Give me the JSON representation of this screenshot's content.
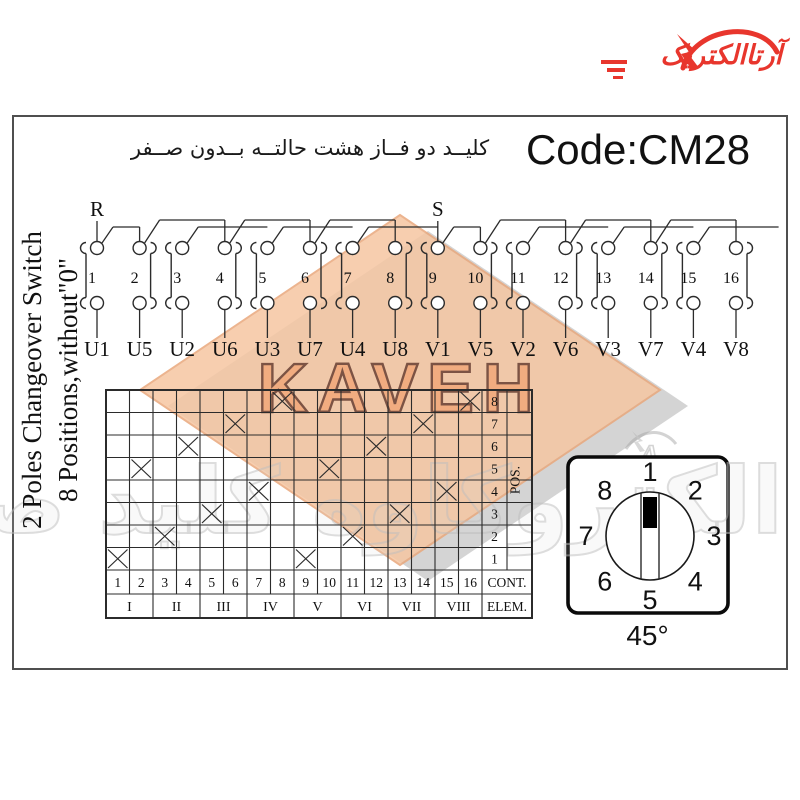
{
  "logo": {
    "brand_fa": "آرتاالکتریک"
  },
  "header": {
    "title_fa": "کلیــد دو فــاز هشت حالتــه بــدون صــفر",
    "code": "Code:CM28"
  },
  "side_label": {
    "line1": "2 Poles Changeover Switch",
    "line2": "8 Positions,without\"0\""
  },
  "circuit": {
    "phase_left": "R",
    "phase_right": "S",
    "contacts": [
      "1",
      "2",
      "3",
      "4",
      "5",
      "6",
      "7",
      "8",
      "9",
      "10",
      "11",
      "12",
      "13",
      "14",
      "15",
      "16"
    ],
    "terminals": [
      "U1",
      "U5",
      "U2",
      "U6",
      "U3",
      "U7",
      "U4",
      "U8",
      "V1",
      "V5",
      "V2",
      "V6",
      "V3",
      "V7",
      "V4",
      "V8"
    ]
  },
  "matrix": {
    "pos_label": "POS.",
    "cont_label": "CONT.",
    "elem_label": "ELEM.",
    "positions_top_to_bottom": [
      "8",
      "7",
      "6",
      "5",
      "4",
      "3",
      "2",
      "1"
    ],
    "contact_columns": [
      "1",
      "2",
      "3",
      "4",
      "5",
      "6",
      "7",
      "8",
      "9",
      "10",
      "11",
      "12",
      "13",
      "14",
      "15",
      "16"
    ],
    "elements": [
      "I",
      "II",
      "III",
      "IV",
      "V",
      "VI",
      "VII",
      "VIII"
    ],
    "closed_contacts_by_position": {
      "1": [
        1,
        9
      ],
      "2": [
        3,
        11
      ],
      "3": [
        5,
        13
      ],
      "4": [
        7,
        15
      ],
      "5": [
        2,
        10
      ],
      "6": [
        4,
        12
      ],
      "7": [
        6,
        14
      ],
      "8": [
        8,
        16
      ]
    }
  },
  "knob": {
    "positions": [
      "1",
      "2",
      "3",
      "4",
      "5",
      "6",
      "7",
      "8"
    ],
    "selected_position": "1",
    "angle_label": "45°"
  },
  "watermarks": {
    "kaveh": "KAVEH",
    "company_fa": "الکتروکاوه کلید صنایع",
    "logo_mark": "A"
  },
  "colors": {
    "accent_red": "#e8362d",
    "line": "#2b2b2b",
    "diamond_fill": "#f6c6a2",
    "diamond_shadow": "#a9a9a9",
    "watermark_text": "#c9c9c9"
  }
}
